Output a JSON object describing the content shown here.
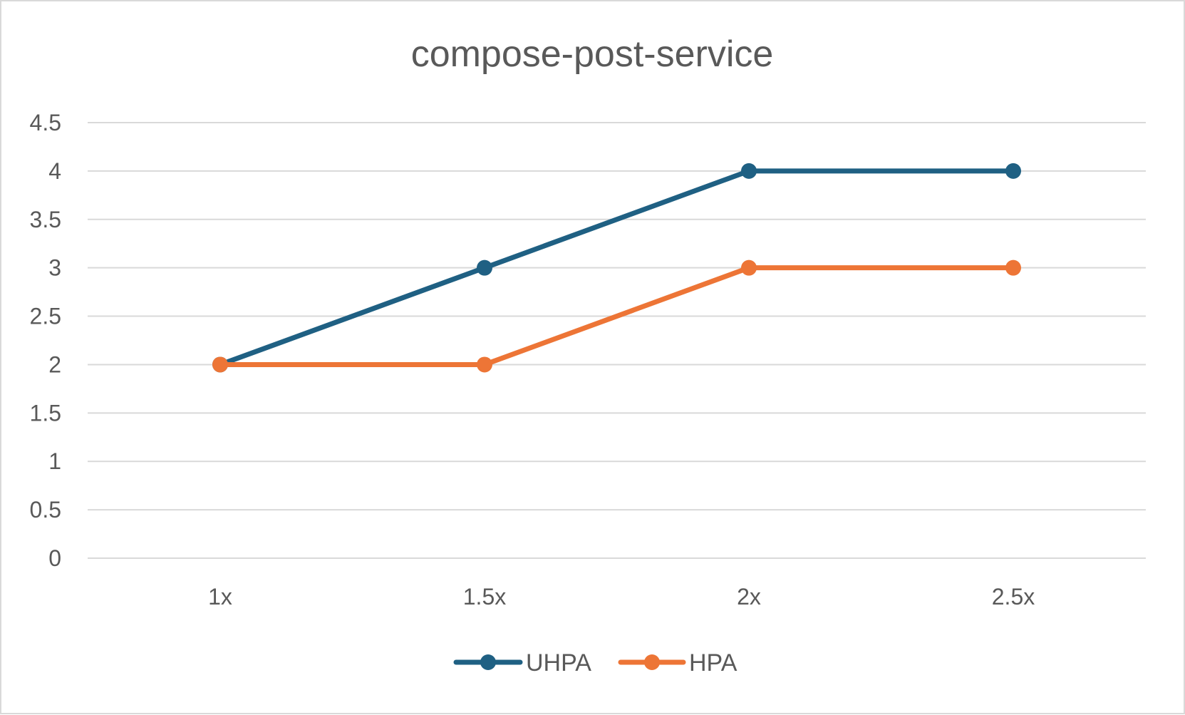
{
  "chart_data": {
    "type": "line",
    "title": "compose-post-service",
    "xlabel": "",
    "ylabel": "",
    "categories": [
      "1x",
      "1.5x",
      "2x",
      "2.5x"
    ],
    "ylim": [
      0,
      4.5
    ],
    "yticks": [
      "0",
      "0.5",
      "1",
      "1.5",
      "2",
      "2.5",
      "3",
      "3.5",
      "4",
      "4.5"
    ],
    "grid": true,
    "legend_position": "bottom",
    "series": [
      {
        "name": "UHPA",
        "color": "#1f6083",
        "values": [
          2,
          3,
          4,
          4
        ]
      },
      {
        "name": "HPA",
        "color": "#ed7536",
        "values": [
          2,
          2,
          3,
          3
        ]
      }
    ]
  }
}
